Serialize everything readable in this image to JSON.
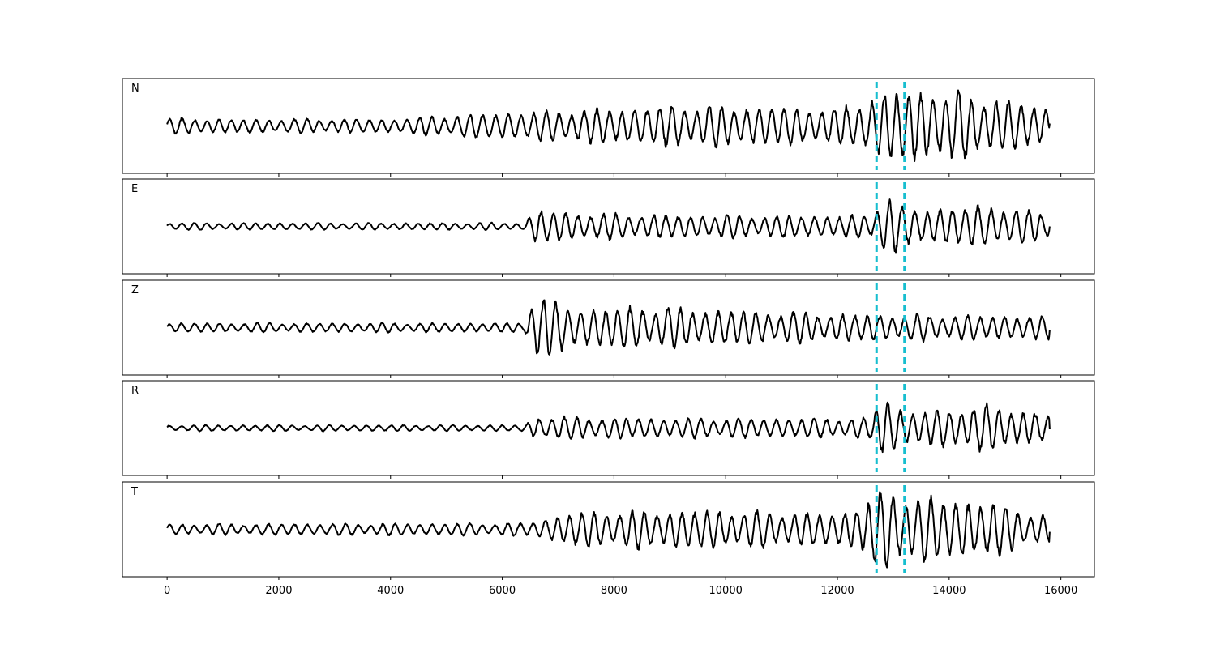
{
  "chart_data": {
    "type": "line",
    "x_axis": {
      "xlim": [
        -800,
        16600
      ],
      "ticks": [
        0,
        2000,
        4000,
        6000,
        8000,
        10000,
        12000,
        14000,
        16000
      ],
      "tick_labels": [
        "0",
        "2000",
        "4000",
        "6000",
        "8000",
        "10000",
        "12000",
        "14000",
        "16000"
      ]
    },
    "samples": 15800,
    "markers": {
      "color": "#17becf",
      "style": "dashed",
      "x": [
        12700,
        13200
      ]
    },
    "line_color": "#000000",
    "panels": [
      {
        "label": "N",
        "description": "continuous oscillation throughout, amplitude gradually increasing after ~5500",
        "envelope": [
          [
            0,
            0.2
          ],
          [
            2000,
            0.18
          ],
          [
            4000,
            0.18
          ],
          [
            5500,
            0.32
          ],
          [
            7000,
            0.4
          ],
          [
            9500,
            0.55
          ],
          [
            12000,
            0.45
          ],
          [
            12900,
            0.9
          ],
          [
            13700,
            0.95
          ],
          [
            14700,
            0.75
          ],
          [
            15800,
            0.45
          ]
        ],
        "final_value": 0.2
      },
      {
        "label": "E",
        "description": "low amplitude until ~6500, pulse at ~12850, moderate afterwards",
        "envelope": [
          [
            0,
            0.09
          ],
          [
            6400,
            0.09
          ],
          [
            6600,
            0.45
          ],
          [
            7400,
            0.35
          ],
          [
            9000,
            0.3
          ],
          [
            12600,
            0.28
          ],
          [
            12850,
            0.95
          ],
          [
            13200,
            0.45
          ],
          [
            14800,
            0.55
          ],
          [
            15800,
            0.35
          ]
        ],
        "final_value": 0.0
      },
      {
        "label": "Z",
        "description": "low amplitude, strong spike at ~6550 then sustained moderate oscillation",
        "envelope": [
          [
            0,
            0.12
          ],
          [
            6400,
            0.12
          ],
          [
            6550,
            0.95
          ],
          [
            7300,
            0.5
          ],
          [
            8400,
            0.55
          ],
          [
            12000,
            0.35
          ],
          [
            15800,
            0.3
          ]
        ],
        "final_value": -0.2
      },
      {
        "label": "R",
        "description": "low amplitude, onset at ~6550, large pulse at ~12850",
        "envelope": [
          [
            0,
            0.08
          ],
          [
            6400,
            0.08
          ],
          [
            6600,
            0.3
          ],
          [
            9000,
            0.25
          ],
          [
            12600,
            0.25
          ],
          [
            12850,
            0.98
          ],
          [
            13200,
            0.4
          ],
          [
            14700,
            0.6
          ],
          [
            15800,
            0.35
          ]
        ],
        "final_value": -0.1
      },
      {
        "label": "T",
        "description": "continuous oscillation, amplitude increasing after ~6500, pulse at ~12850",
        "envelope": [
          [
            0,
            0.14
          ],
          [
            6400,
            0.16
          ],
          [
            7300,
            0.45
          ],
          [
            9500,
            0.5
          ],
          [
            12000,
            0.4
          ],
          [
            12850,
            1.0
          ],
          [
            13800,
            0.8
          ],
          [
            14700,
            0.7
          ],
          [
            15800,
            0.35
          ]
        ],
        "final_value": -0.2
      }
    ]
  }
}
